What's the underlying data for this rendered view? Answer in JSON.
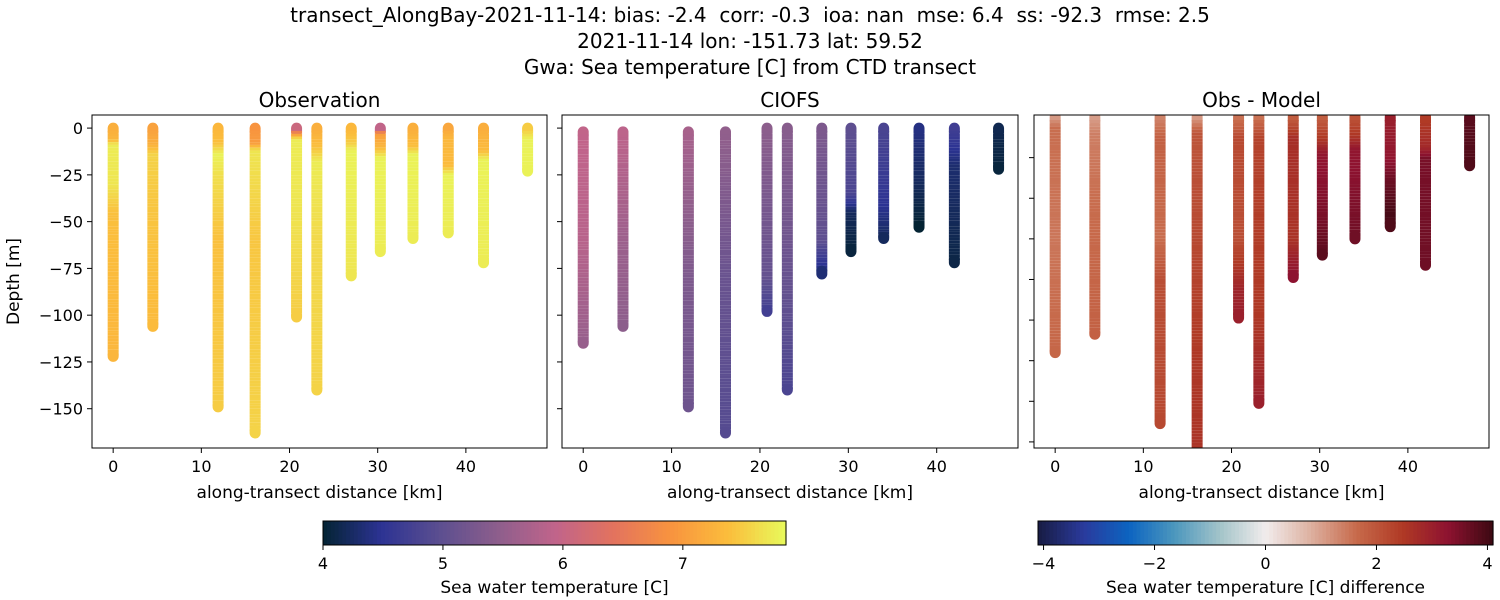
{
  "figure": {
    "title_lines": [
      "transect_AlongBay-2021-11-14: bias: -2.4  corr: -0.3  ioa: nan  mse: 6.4  ss: -92.3  rmse: 2.5",
      "2021-11-14 lon: -151.73 lat: 59.52",
      "Gwa: Sea temperature [C] from CTD transect"
    ]
  },
  "chart_data": [
    {
      "type": "scatter",
      "title": "Observation",
      "xlabel": "along-transect distance [km]",
      "ylabel": "Depth [m]",
      "xlim": [
        -2.4,
        49.2
      ],
      "ylim": [
        -171,
        7
      ],
      "xticks": [
        0,
        10,
        20,
        30,
        40
      ],
      "yticks": [
        0,
        -25,
        -50,
        -75,
        -100,
        -125,
        -150
      ],
      "ytick_labels": [
        "0",
        "−25",
        "−50",
        "−75",
        "−100",
        "−125",
        "−150"
      ],
      "colorbar": "temperature",
      "stations": [
        {
          "x": 0,
          "profile": [
            [
              0,
              7.2
            ],
            [
              6,
              7.3
            ],
            [
              9,
              7.75
            ],
            [
              30,
              7.7
            ],
            [
              45,
              7.4
            ],
            [
              122,
              7.3
            ]
          ]
        },
        {
          "x": 4.5,
          "profile": [
            [
              0,
              7.05
            ],
            [
              8,
              7.2
            ],
            [
              14,
              7.55
            ],
            [
              40,
              7.45
            ],
            [
              106,
              7.35
            ]
          ]
        },
        {
          "x": 11.9,
          "profile": [
            [
              0,
              7.3
            ],
            [
              8,
              7.4
            ],
            [
              14,
              7.8
            ],
            [
              25,
              7.65
            ],
            [
              60,
              7.4
            ],
            [
              149,
              7.5
            ]
          ]
        },
        {
          "x": 16.1,
          "profile": [
            [
              0,
              6.9
            ],
            [
              8,
              7.0
            ],
            [
              12,
              7.7
            ],
            [
              30,
              7.6
            ],
            [
              60,
              7.45
            ],
            [
              163,
              7.55
            ]
          ]
        },
        {
          "x": 20.8,
          "profile": [
            [
              0,
              5.8
            ],
            [
              3,
              6.9
            ],
            [
              6,
              7.75
            ],
            [
              40,
              7.7
            ],
            [
              101,
              7.5
            ]
          ]
        },
        {
          "x": 23.1,
          "profile": [
            [
              0,
              7.2
            ],
            [
              10,
              7.4
            ],
            [
              18,
              7.75
            ],
            [
              60,
              7.6
            ],
            [
              140,
              7.55
            ]
          ]
        },
        {
          "x": 27,
          "profile": [
            [
              0,
              7.3
            ],
            [
              8,
              7.5
            ],
            [
              12,
              7.8
            ],
            [
              79,
              7.7
            ]
          ]
        },
        {
          "x": 30.3,
          "profile": [
            [
              0,
              5.6
            ],
            [
              3,
              7.0
            ],
            [
              10,
              7.3
            ],
            [
              16,
              7.8
            ],
            [
              66,
              7.75
            ]
          ]
        },
        {
          "x": 34,
          "profile": [
            [
              0,
              7.2
            ],
            [
              10,
              7.4
            ],
            [
              14,
              7.8
            ],
            [
              59,
              7.75
            ]
          ]
        },
        {
          "x": 38,
          "profile": [
            [
              0,
              7.1
            ],
            [
              5,
              7.3
            ],
            [
              20,
              7.35
            ],
            [
              25,
              7.8
            ],
            [
              56,
              7.75
            ]
          ]
        },
        {
          "x": 42,
          "profile": [
            [
              0,
              7.2
            ],
            [
              12,
              7.35
            ],
            [
              17,
              7.8
            ],
            [
              72,
              7.75
            ]
          ]
        },
        {
          "x": 47,
          "profile": [
            [
              0,
              7.45
            ],
            [
              6,
              7.8
            ],
            [
              23,
              7.8
            ]
          ]
        }
      ]
    },
    {
      "type": "scatter",
      "title": "CIOFS",
      "xlabel": "along-transect distance [km]",
      "xlim": [
        -2.4,
        49.2
      ],
      "ylim": [
        -171,
        7
      ],
      "xticks": [
        0,
        10,
        20,
        30,
        40
      ],
      "yticks": [
        0,
        -25,
        -50,
        -75,
        -100,
        -125,
        -150
      ],
      "colorbar": "temperature",
      "stations": [
        {
          "x": 0,
          "profile": [
            [
              2,
              5.95
            ],
            [
              60,
              5.85
            ],
            [
              115,
              5.55
            ]
          ]
        },
        {
          "x": 4.5,
          "profile": [
            [
              2,
              5.9
            ],
            [
              60,
              5.6
            ],
            [
              106,
              5.45
            ]
          ]
        },
        {
          "x": 11.9,
          "profile": [
            [
              2,
              5.7
            ],
            [
              80,
              5.3
            ],
            [
              149,
              5.15
            ]
          ]
        },
        {
          "x": 16.1,
          "profile": [
            [
              2,
              5.5
            ],
            [
              80,
              5.1
            ],
            [
              163,
              4.9
            ]
          ]
        },
        {
          "x": 20.8,
          "profile": [
            [
              0,
              5.45
            ],
            [
              80,
              5.05
            ],
            [
              98,
              4.7
            ]
          ]
        },
        {
          "x": 23.1,
          "profile": [
            [
              0,
              5.4
            ],
            [
              100,
              5.0
            ],
            [
              140,
              4.8
            ]
          ]
        },
        {
          "x": 27,
          "profile": [
            [
              0,
              5.3
            ],
            [
              60,
              5.0
            ],
            [
              70,
              4.6
            ],
            [
              78,
              4.3
            ]
          ]
        },
        {
          "x": 30.3,
          "profile": [
            [
              0,
              5.0
            ],
            [
              35,
              4.8
            ],
            [
              45,
              4.2
            ],
            [
              66,
              4.05
            ]
          ]
        },
        {
          "x": 34,
          "profile": [
            [
              0,
              4.8
            ],
            [
              40,
              4.5
            ],
            [
              59,
              4.2
            ]
          ]
        },
        {
          "x": 38,
          "profile": [
            [
              0,
              4.4
            ],
            [
              30,
              4.2
            ],
            [
              53,
              4.0
            ]
          ]
        },
        {
          "x": 42,
          "profile": [
            [
              0,
              4.7
            ],
            [
              20,
              4.3
            ],
            [
              72,
              4.1
            ]
          ]
        },
        {
          "x": 47,
          "profile": [
            [
              0,
              4.15
            ],
            [
              22,
              4.05
            ]
          ]
        }
      ]
    },
    {
      "type": "scatter",
      "title": "Obs - Model",
      "xlabel": "along-transect distance [km]",
      "xlim": [
        -2.4,
        49.2
      ],
      "ylim": [
        -163,
        1
      ],
      "xticks": [
        0,
        10,
        20,
        30,
        40
      ],
      "yticks": [
        -20,
        -40,
        -60,
        -80,
        -100,
        -120,
        -140,
        -160
      ],
      "colorbar": "difference",
      "stations": [
        {
          "x": 0,
          "profile": [
            [
              0,
              1.0
            ],
            [
              5,
              1.6
            ],
            [
              60,
              1.5
            ],
            [
              116,
              1.7
            ]
          ]
        },
        {
          "x": 4.5,
          "profile": [
            [
              0,
              1.0
            ],
            [
              8,
              1.4
            ],
            [
              40,
              1.6
            ],
            [
              107,
              1.8
            ]
          ]
        },
        {
          "x": 11.9,
          "profile": [
            [
              0,
              1.3
            ],
            [
              10,
              1.8
            ],
            [
              60,
              1.6
            ],
            [
              80,
              2.1
            ],
            [
              151,
              2.2
            ]
          ]
        },
        {
          "x": 16.1,
          "profile": [
            [
              0,
              1.0
            ],
            [
              8,
              2.0
            ],
            [
              60,
              2.2
            ],
            [
              120,
              2.5
            ],
            [
              170,
              2.6
            ]
          ]
        },
        {
          "x": 20.8,
          "profile": [
            [
              0,
              1.5
            ],
            [
              10,
              2.2
            ],
            [
              60,
              2.1
            ],
            [
              85,
              2.9
            ],
            [
              99,
              3.0
            ]
          ]
        },
        {
          "x": 23.1,
          "profile": [
            [
              0,
              1.5
            ],
            [
              10,
              2.3
            ],
            [
              100,
              2.5
            ],
            [
              141,
              3.0
            ]
          ]
        },
        {
          "x": 27,
          "profile": [
            [
              0,
              1.8
            ],
            [
              10,
              2.7
            ],
            [
              60,
              2.6
            ],
            [
              72,
              3.1
            ],
            [
              79,
              3.3
            ]
          ]
        },
        {
          "x": 30.3,
          "profile": [
            [
              0,
              1.8
            ],
            [
              12,
              2.6
            ],
            [
              18,
              3.2
            ],
            [
              50,
              3.5
            ],
            [
              68,
              3.8
            ]
          ]
        },
        {
          "x": 34,
          "profile": [
            [
              0,
              2.0
            ],
            [
              10,
              2.6
            ],
            [
              16,
              3.2
            ],
            [
              60,
              3.6
            ]
          ]
        },
        {
          "x": 38,
          "profile": [
            [
              0,
              3.0
            ],
            [
              20,
              3.2
            ],
            [
              30,
              3.6
            ],
            [
              48,
              4.0
            ],
            [
              54,
              3.9
            ]
          ]
        },
        {
          "x": 42,
          "profile": [
            [
              0,
              2.4
            ],
            [
              15,
              2.8
            ],
            [
              20,
              3.5
            ],
            [
              73,
              3.6
            ]
          ]
        },
        {
          "x": 47,
          "profile": [
            [
              0,
              3.8
            ],
            [
              24,
              3.9
            ]
          ]
        }
      ]
    }
  ],
  "colorbars": {
    "temperature": {
      "label": "Sea water temperature [C]",
      "range": [
        4,
        7.86
      ],
      "ticks": [
        4,
        5,
        6,
        7
      ],
      "tick_labels": [
        "4",
        "5",
        "6",
        "7"
      ],
      "colors": [
        "#042333",
        "#2c3393",
        "#5b4e90",
        "#8c5e8c",
        "#c0648b",
        "#e2725f",
        "#f8933f",
        "#fbbd3c",
        "#e8fa5b"
      ]
    },
    "difference": {
      "label": "Sea water temperature [C] difference",
      "range": [
        -4.1,
        4.1
      ],
      "ticks": [
        -4,
        -2,
        0,
        2,
        4
      ],
      "tick_labels": [
        "−4",
        "−2",
        "0",
        "2",
        "4"
      ],
      "colors": [
        "#181c43",
        "#2a3a9c",
        "#0c64c1",
        "#4c97bd",
        "#a3c4c9",
        "#f1ecec",
        "#ddb0a0",
        "#c76a4b",
        "#b03a25",
        "#8e1230",
        "#3c0912"
      ]
    }
  }
}
